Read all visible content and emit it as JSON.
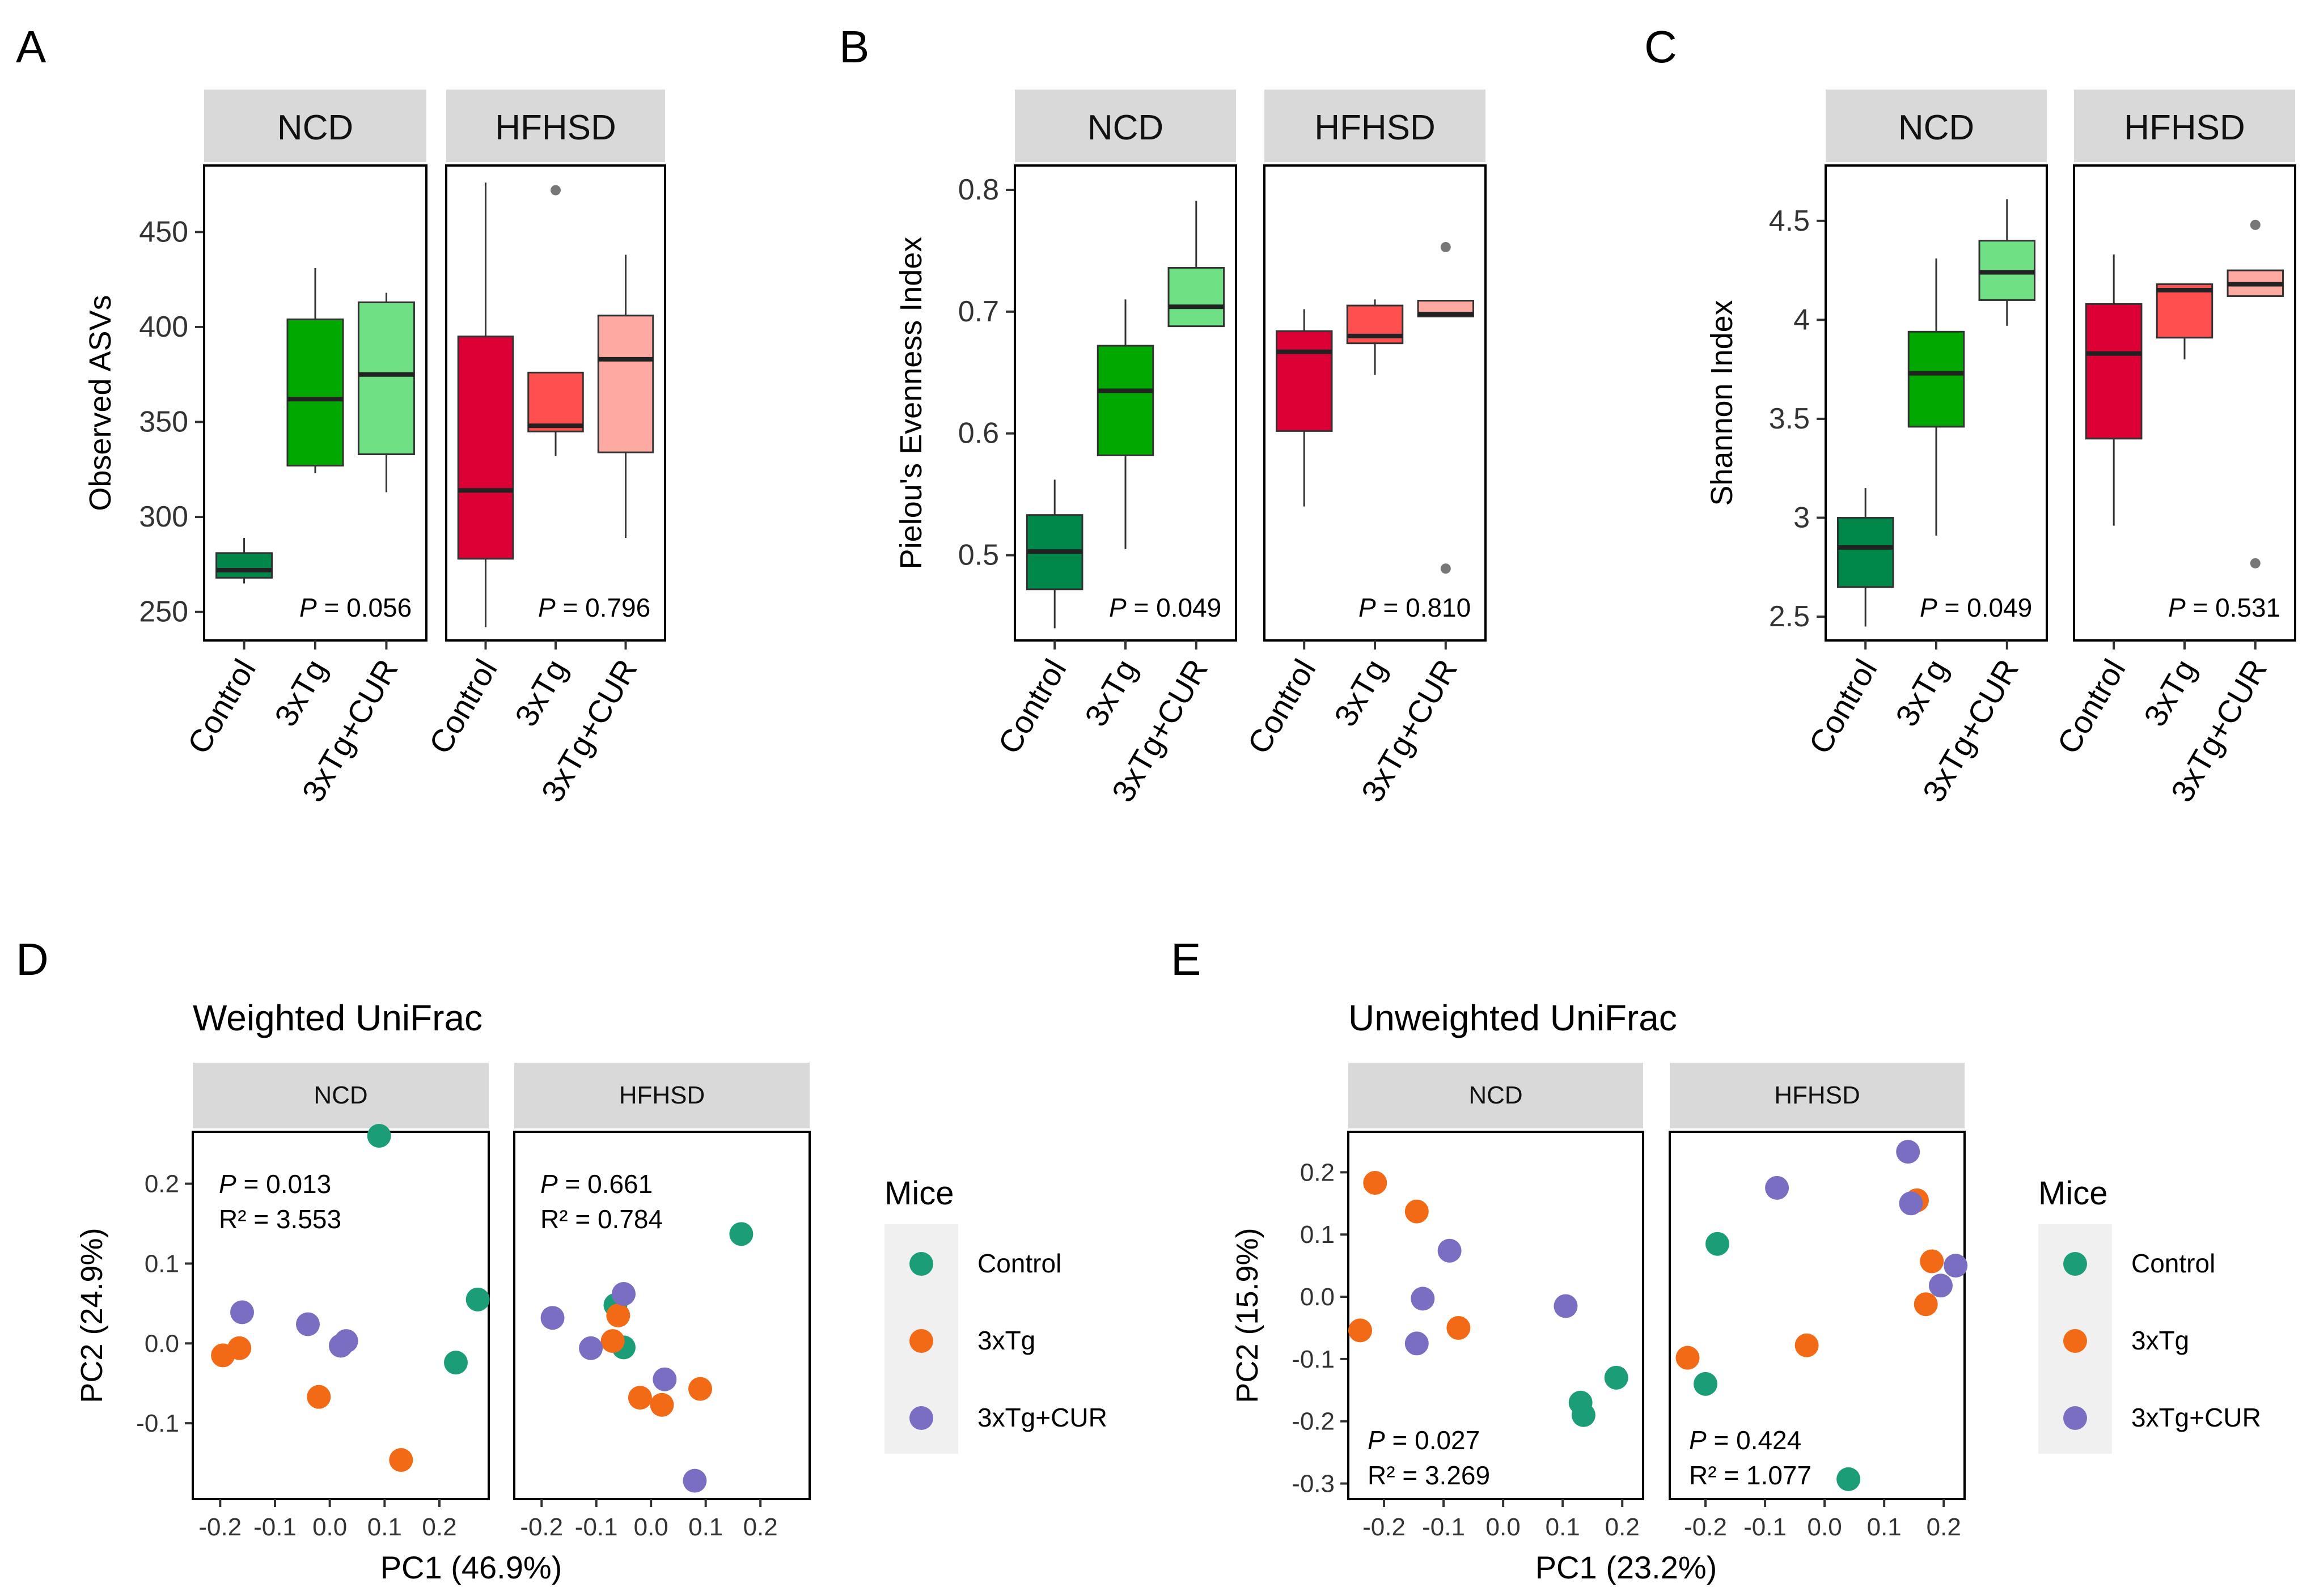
{
  "chart_data": [
    {
      "panel": "A",
      "type": "boxplot",
      "ylabel": "Observed ASVs",
      "ylim": [
        235,
        485
      ],
      "yticks": [
        250,
        300,
        350,
        400,
        450
      ],
      "categories": [
        "Control",
        "3xTg",
        "3xTg+CUR"
      ],
      "facets": [
        {
          "title": "NCD",
          "p_value": "0.056",
          "boxes": [
            {
              "category": "Control",
              "min": 265,
              "q1": 268,
              "median": 272,
              "q3": 281,
              "max": 289,
              "outliers": []
            },
            {
              "category": "3xTg",
              "min": 323,
              "q1": 327,
              "median": 362,
              "q3": 404,
              "max": 431,
              "outliers": []
            },
            {
              "category": "3xTg+CUR",
              "min": 313,
              "q1": 333,
              "median": 375,
              "q3": 413,
              "max": 418,
              "outliers": []
            }
          ]
        },
        {
          "title": "HFHSD",
          "p_value": "0.796",
          "boxes": [
            {
              "category": "Control",
              "min": 242,
              "q1": 278,
              "median": 314,
              "q3": 395,
              "max": 476,
              "outliers": []
            },
            {
              "category": "3xTg",
              "min": 332,
              "q1": 345,
              "median": 348,
              "q3": 376,
              "max": 376,
              "outliers": [
                472
              ]
            },
            {
              "category": "3xTg+CUR",
              "min": 289,
              "q1": 334,
              "median": 383,
              "q3": 406,
              "max": 438,
              "outliers": []
            }
          ]
        }
      ]
    },
    {
      "panel": "B",
      "type": "boxplot",
      "ylabel": "Pielou's Evenness Index",
      "ylim": [
        0.43,
        0.82
      ],
      "yticks": [
        0.5,
        0.6,
        0.7,
        0.8
      ],
      "categories": [
        "Control",
        "3xTg",
        "3xTg+CUR"
      ],
      "facets": [
        {
          "title": "NCD",
          "p_value": "0.049",
          "boxes": [
            {
              "category": "Control",
              "min": 0.44,
              "q1": 0.472,
              "median": 0.503,
              "q3": 0.533,
              "max": 0.562,
              "outliers": []
            },
            {
              "category": "3xTg",
              "min": 0.505,
              "q1": 0.582,
              "median": 0.635,
              "q3": 0.672,
              "max": 0.71,
              "outliers": []
            },
            {
              "category": "3xTg+CUR",
              "min": 0.688,
              "q1": 0.688,
              "median": 0.704,
              "q3": 0.736,
              "max": 0.791,
              "outliers": []
            }
          ]
        },
        {
          "title": "HFHSD",
          "p_value": "0.810",
          "boxes": [
            {
              "category": "Control",
              "min": 0.54,
              "q1": 0.602,
              "median": 0.667,
              "q3": 0.684,
              "max": 0.702,
              "outliers": []
            },
            {
              "category": "3xTg",
              "min": 0.648,
              "q1": 0.674,
              "median": 0.68,
              "q3": 0.705,
              "max": 0.71,
              "outliers": []
            },
            {
              "category": "3xTg+CUR",
              "min": 0.696,
              "q1": 0.696,
              "median": 0.698,
              "q3": 0.709,
              "max": 0.709,
              "outliers": [
                0.753,
                0.489
              ]
            }
          ]
        }
      ]
    },
    {
      "panel": "C",
      "type": "boxplot",
      "ylabel": "Shannon Index",
      "ylim": [
        2.38,
        4.78
      ],
      "yticks": [
        2.5,
        3.0,
        3.5,
        4.0,
        4.5
      ],
      "categories": [
        "Control",
        "3xTg",
        "3xTg+CUR"
      ],
      "facets": [
        {
          "title": "NCD",
          "p_value": "0.049",
          "boxes": [
            {
              "category": "Control",
              "min": 2.45,
              "q1": 2.65,
              "median": 2.85,
              "q3": 3.0,
              "max": 3.15,
              "outliers": []
            },
            {
              "category": "3xTg",
              "min": 2.91,
              "q1": 3.46,
              "median": 3.73,
              "q3": 3.94,
              "max": 4.31,
              "outliers": []
            },
            {
              "category": "3xTg+CUR",
              "min": 3.97,
              "q1": 4.1,
              "median": 4.24,
              "q3": 4.4,
              "max": 4.61,
              "outliers": []
            }
          ]
        },
        {
          "title": "HFHSD",
          "p_value": "0.531",
          "boxes": [
            {
              "category": "Control",
              "min": 2.96,
              "q1": 3.4,
              "median": 3.83,
              "q3": 4.08,
              "max": 4.33,
              "outliers": []
            },
            {
              "category": "3xTg",
              "min": 3.8,
              "q1": 3.91,
              "median": 4.15,
              "q3": 4.18,
              "max": 4.18,
              "outliers": []
            },
            {
              "category": "3xTg+CUR",
              "min": 4.12,
              "q1": 4.12,
              "median": 4.18,
              "q3": 4.25,
              "max": 4.25,
              "outliers": [
                4.48,
                2.77
              ]
            }
          ]
        }
      ]
    },
    {
      "panel": "D",
      "type": "scatter",
      "title": "Weighted UniFrac",
      "xlabel": "PC1 (46.9%)",
      "ylabel": "PC2 (24.9%)",
      "xlim": [
        -0.25,
        0.29
      ],
      "ylim": [
        -0.195,
        0.265
      ],
      "xticks": [
        -0.2,
        -0.1,
        0.0,
        0.1,
        0.2
      ],
      "xtick_labels": [
        "-0.2",
        "-0.1",
        "0.0",
        "0.1",
        "0.2"
      ],
      "yticks": [
        -0.1,
        0.0,
        0.1,
        0.2
      ],
      "ytick_labels": [
        "-0.1",
        "0.0",
        "0.1",
        "0.2"
      ],
      "legend_title": "Mice",
      "facets": [
        {
          "title": "NCD",
          "p_value": "0.013",
          "r2": "3.553",
          "stats_position": "top-left",
          "series": [
            {
              "name": "Control",
              "points": [
                [
                  0.09,
                  0.26
                ],
                [
                  0.27,
                  0.055
                ],
                [
                  0.23,
                  -0.024
                ]
              ]
            },
            {
              "name": "3xTg",
              "points": [
                [
                  -0.195,
                  -0.015
                ],
                [
                  -0.165,
                  -0.006
                ],
                [
                  -0.02,
                  -0.067
                ],
                [
                  0.13,
                  -0.146
                ]
              ]
            },
            {
              "name": "3xTg+CUR",
              "points": [
                [
                  -0.16,
                  0.039
                ],
                [
                  -0.04,
                  0.024
                ],
                [
                  0.02,
                  -0.003
                ],
                [
                  0.03,
                  0.003
                ]
              ]
            }
          ]
        },
        {
          "title": "HFHSD",
          "p_value": "0.661",
          "r2": "0.784",
          "stats_position": "top-left",
          "series": [
            {
              "name": "Control",
              "points": [
                [
                  0.165,
                  0.137
                ],
                [
                  -0.065,
                  0.048
                ],
                [
                  -0.05,
                  -0.005
                ]
              ]
            },
            {
              "name": "3xTg",
              "points": [
                [
                  -0.07,
                  0.003
                ],
                [
                  -0.06,
                  0.035
                ],
                [
                  -0.02,
                  -0.068
                ],
                [
                  0.02,
                  -0.077
                ],
                [
                  0.09,
                  -0.057
                ]
              ]
            },
            {
              "name": "3xTg+CUR",
              "points": [
                [
                  -0.18,
                  0.032
                ],
                [
                  -0.05,
                  0.062
                ],
                [
                  -0.11,
                  -0.006
                ],
                [
                  0.025,
                  -0.045
                ],
                [
                  0.08,
                  -0.172
                ]
              ]
            }
          ]
        }
      ]
    },
    {
      "panel": "E",
      "type": "scatter",
      "title": "Unweighted UniFrac",
      "xlabel": "PC1 (23.2%)",
      "ylabel": "PC2 (15.9%)",
      "xlim": [
        -0.26,
        0.235
      ],
      "ylim": [
        -0.325,
        0.265
      ],
      "xticks": [
        -0.2,
        -0.1,
        0.0,
        0.1,
        0.2
      ],
      "xtick_labels": [
        "-0.2",
        "-0.1",
        "0.0",
        "0.1",
        "0.2"
      ],
      "yticks": [
        -0.3,
        -0.2,
        -0.1,
        0.0,
        0.1,
        0.2
      ],
      "ytick_labels": [
        "-0.3",
        "-0.2",
        "-0.1",
        "0.0",
        "0.1",
        "0.2"
      ],
      "legend_title": "Mice",
      "facets": [
        {
          "title": "NCD",
          "p_value": "0.027",
          "r2": "3.269",
          "stats_position": "bottom-left",
          "series": [
            {
              "name": "Control",
              "points": [
                [
                  0.13,
                  -0.17
                ],
                [
                  0.135,
                  -0.19
                ],
                [
                  0.19,
                  -0.13
                ]
              ]
            },
            {
              "name": "3xTg",
              "points": [
                [
                  -0.215,
                  0.183
                ],
                [
                  -0.145,
                  0.137
                ],
                [
                  -0.24,
                  -0.054
                ],
                [
                  -0.075,
                  -0.05
                ]
              ]
            },
            {
              "name": "3xTg+CUR",
              "points": [
                [
                  -0.09,
                  0.074
                ],
                [
                  -0.135,
                  -0.003
                ],
                [
                  -0.145,
                  -0.075
                ],
                [
                  0.105,
                  -0.015
                ]
              ]
            }
          ]
        },
        {
          "title": "HFHSD",
          "p_value": "0.424",
          "r2": "1.077",
          "stats_position": "bottom-left",
          "series": [
            {
              "name": "Control",
              "points": [
                [
                  -0.18,
                  0.085
                ],
                [
                  -0.2,
                  -0.14
                ],
                [
                  0.04,
                  -0.293
                ]
              ]
            },
            {
              "name": "3xTg",
              "points": [
                [
                  -0.23,
                  -0.098
                ],
                [
                  -0.03,
                  -0.078
                ],
                [
                  0.155,
                  0.155
                ],
                [
                  0.18,
                  0.057
                ],
                [
                  0.17,
                  -0.012
                ]
              ]
            },
            {
              "name": "3xTg+CUR",
              "points": [
                [
                  -0.08,
                  0.175
                ],
                [
                  0.14,
                  0.233
                ],
                [
                  0.145,
                  0.15
                ],
                [
                  0.22,
                  0.05
                ],
                [
                  0.195,
                  0.018
                ]
              ]
            }
          ]
        }
      ]
    }
  ],
  "colors": {
    "box_ncd": [
      "#00884B",
      "#00A800",
      "#6FE083"
    ],
    "box_hfhsd": [
      "#DC0034",
      "#FF4F4F",
      "#FFA9A3"
    ],
    "scatter": {
      "Control": "#1B9E77",
      "3xTg": "#F26A16",
      "3xTg+CUR": "#7A6EC2"
    },
    "strip_bg": "#D9D9D9",
    "legend_bg": "#F0F0F0",
    "outlier": "#777777"
  },
  "panel_labels": [
    "A",
    "B",
    "C",
    "D",
    "E"
  ],
  "p_label": "P",
  "r2_label": "R²"
}
